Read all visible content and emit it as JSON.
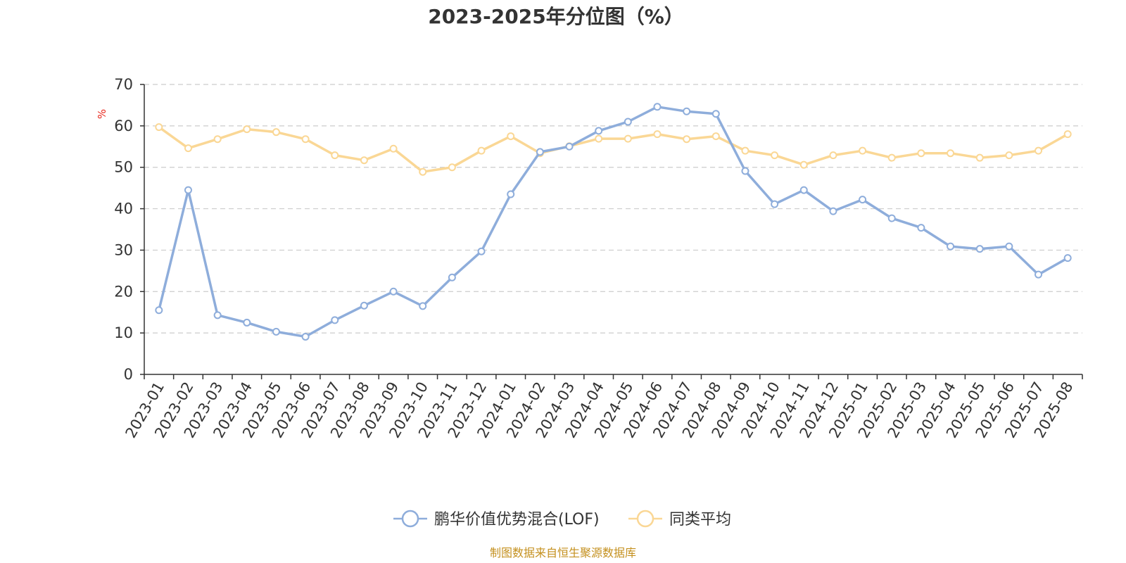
{
  "chart_data": {
    "type": "line",
    "title": "2023-2025年分位图（%）",
    "ylabel": "%",
    "xlabel": "",
    "ylim": [
      0,
      70
    ],
    "yticks": [
      0,
      10,
      20,
      30,
      40,
      50,
      60,
      70
    ],
    "grid": true,
    "legend_position": "bottom-center",
    "categories": [
      "2023-01",
      "2023-02",
      "2023-03",
      "2023-04",
      "2023-05",
      "2023-06",
      "2023-07",
      "2023-08",
      "2023-09",
      "2023-10",
      "2023-11",
      "2023-12",
      "2024-01",
      "2024-02",
      "2024-03",
      "2024-04",
      "2024-05",
      "2024-06",
      "2024-07",
      "2024-08",
      "2024-09",
      "2024-10",
      "2024-11",
      "2024-12",
      "2025-01",
      "2025-02",
      "2025-03",
      "2025-04",
      "2025-05",
      "2025-06",
      "2025-07",
      "2025-08"
    ],
    "series": [
      {
        "name": "鹏华价值优势混合(LOF)",
        "color": "#8eaddb",
        "values": [
          15.5,
          44.5,
          14.3,
          12.5,
          10.3,
          9.1,
          13.1,
          16.6,
          20.0,
          16.5,
          23.4,
          29.7,
          43.5,
          53.7,
          55.0,
          58.8,
          61.0,
          64.6,
          63.5,
          62.9,
          49.1,
          41.1,
          44.5,
          39.4,
          42.2,
          37.7,
          35.4,
          30.9,
          30.3,
          30.9,
          24.1,
          28.1
        ]
      },
      {
        "name": "同类平均",
        "color": "#fad795",
        "values": [
          59.7,
          54.6,
          56.8,
          59.2,
          58.5,
          56.8,
          52.9,
          51.7,
          54.5,
          48.9,
          50.0,
          54.0,
          57.5,
          53.4,
          55.1,
          56.9,
          56.9,
          58.0,
          56.8,
          57.5,
          54.0,
          52.9,
          50.6,
          52.9,
          54.0,
          52.3,
          53.4,
          53.4,
          52.3,
          52.9,
          54.0,
          58.0
        ]
      }
    ]
  },
  "source_note": "制图数据来自恒生聚源数据库"
}
